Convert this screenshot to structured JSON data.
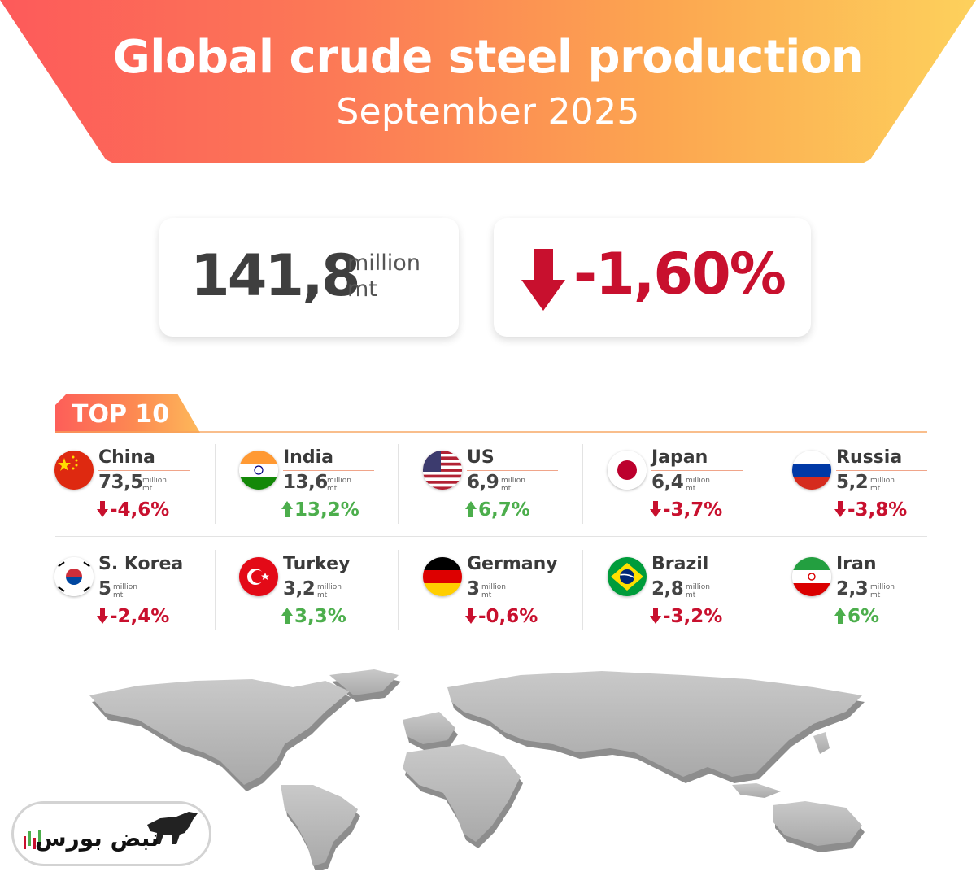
{
  "header": {
    "title": "Global crude steel production",
    "subtitle": "September 2025"
  },
  "summary": {
    "total_value": "141,8",
    "total_unit_line1": "million",
    "total_unit_line2": "mt",
    "change_value": "-1,60%",
    "change_direction": "down"
  },
  "top10": {
    "label": "TOP 10",
    "countries": [
      {
        "name": "China",
        "value": "73,5",
        "unit1": "million",
        "unit2": "mt",
        "change": "-4,6%",
        "direction": "down"
      },
      {
        "name": "India",
        "value": "13,6",
        "unit1": "million",
        "unit2": "mt",
        "change": "13,2%",
        "direction": "up"
      },
      {
        "name": "US",
        "value": "6,9",
        "unit1": "million",
        "unit2": "mt",
        "change": "6,7%",
        "direction": "up"
      },
      {
        "name": "Japan",
        "value": "6,4",
        "unit1": "million",
        "unit2": "mt",
        "change": "-3,7%",
        "direction": "down"
      },
      {
        "name": "Russia",
        "value": "5,2",
        "unit1": "million",
        "unit2": "mt",
        "change": "-3,8%",
        "direction": "down"
      },
      {
        "name": "S. Korea",
        "value": "5",
        "unit1": "million",
        "unit2": "mt",
        "change": "-2,4%",
        "direction": "down"
      },
      {
        "name": "Turkey",
        "value": "3,2",
        "unit1": "million",
        "unit2": "mt",
        "change": "3,3%",
        "direction": "up"
      },
      {
        "name": "Germany",
        "value": "3",
        "unit1": "million",
        "unit2": "mt",
        "change": "-0,6%",
        "direction": "down"
      },
      {
        "name": "Brazil",
        "value": "2,8",
        "unit1": "million",
        "unit2": "mt",
        "change": "-3,2%",
        "direction": "down"
      },
      {
        "name": "Iran",
        "value": "2,3",
        "unit1": "million",
        "unit2": "mt",
        "change": "6%",
        "direction": "up"
      }
    ]
  },
  "colors": {
    "down": "#c8102e",
    "up": "#4cae4c",
    "banner_start": "#fd5a5a",
    "banner_end": "#fdd15c"
  },
  "logo": {
    "text": "نبض بورس"
  }
}
